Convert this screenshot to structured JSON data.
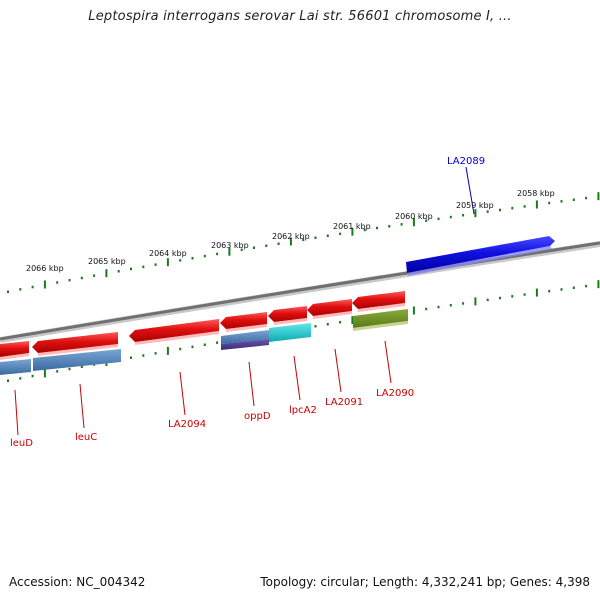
{
  "header": {
    "title": "Leptospira interrogans serovar Lai str. 56601 chromosome I, ..."
  },
  "footer": {
    "accession": "Accession: NC_004342",
    "summary": "Topology: circular; Length: 4,332,241 bp; Genes: 4,398"
  },
  "ruler": {
    "labels": [
      "2066 kbp",
      "2065 kbp",
      "2064 kbp",
      "2063 kbp",
      "2062 kbp",
      "2061 kbp",
      "2060 kbp",
      "2059 kbp",
      "2058 kbp"
    ],
    "tick_color": "#1a7a1a"
  },
  "genes": [
    {
      "name": "leuD",
      "color": "#cc0000"
    },
    {
      "name": "leuC",
      "color": "#cc0000"
    },
    {
      "name": "LA2094",
      "color": "#cc0000"
    },
    {
      "name": "oppD",
      "color": "#cc0000"
    },
    {
      "name": "lpcA2",
      "color": "#cc0000"
    },
    {
      "name": "LA2091",
      "color": "#cc0000"
    },
    {
      "name": "LA2090",
      "color": "#cc0000"
    },
    {
      "name": "LA2089",
      "color": "#0000cc"
    }
  ],
  "colors": {
    "cds_forward": "#1010e0",
    "cds_reverse": "#e81010",
    "backbone": "#808080",
    "feature_steelblue": "#4a7fb5",
    "feature_cyan": "#18c8c8",
    "feature_olive": "#6a8a1e",
    "feature_purple": "#4a3a8a"
  }
}
